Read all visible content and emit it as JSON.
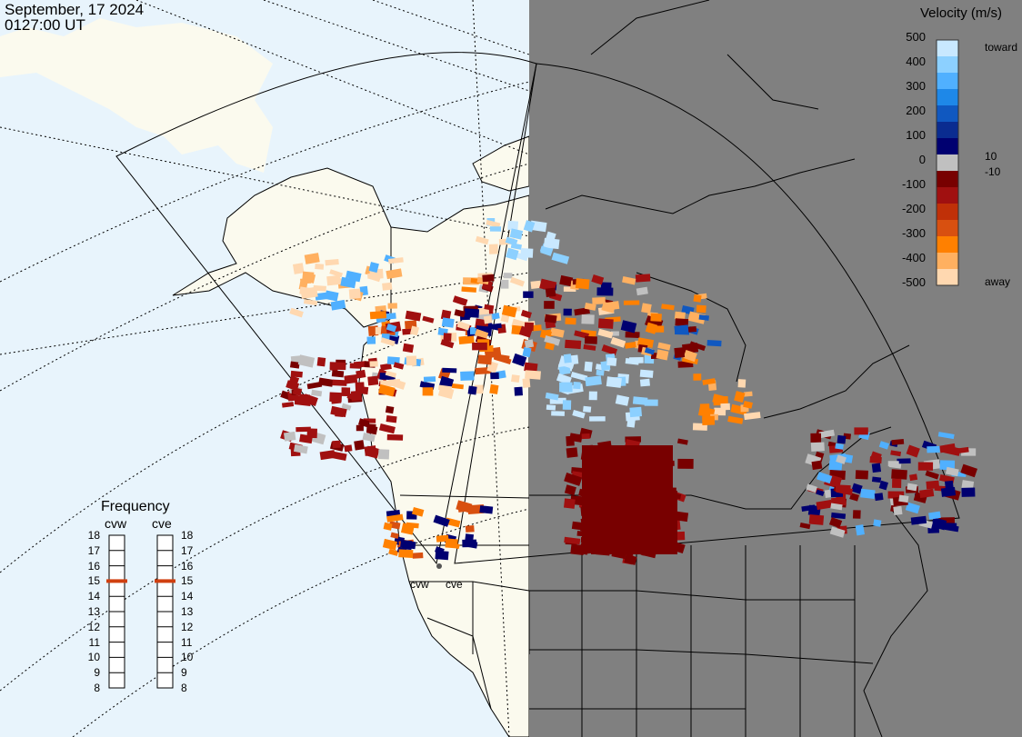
{
  "timestamp": {
    "date": "September, 17 2024",
    "time": "0127:00 UT"
  },
  "colorbar": {
    "title": "Velocity (m/s)",
    "ticks": [
      "500",
      "400",
      "300",
      "200",
      "100",
      "0",
      "-100",
      "-200",
      "-300",
      "-400",
      "-500"
    ],
    "toward_label": "toward",
    "away_label": "away",
    "small_pos": "10",
    "small_neg": "-10",
    "colors": [
      "#c8e8ff",
      "#8cd0ff",
      "#50b0ff",
      "#1e88e8",
      "#1058c0",
      "#0a2c90",
      "#000070",
      "#c0c0c0",
      "#780000",
      "#a01010",
      "#c03008",
      "#d85010",
      "#ff8000",
      "#ffb060",
      "#ffd8b0"
    ]
  },
  "frequency": {
    "title": "Frequency",
    "radars": [
      "cvw",
      "cve"
    ],
    "scale": [
      "18",
      "17",
      "16",
      "15",
      "14",
      "13",
      "12",
      "11",
      "10",
      "9",
      "8"
    ],
    "selected_mhz": [
      15,
      15
    ]
  },
  "stations": [
    "cvw",
    "cve"
  ],
  "colors": {
    "ocean": "#e8f4fc",
    "land": "#fbfaee",
    "night": "#808080",
    "marker": "#d04010"
  }
}
